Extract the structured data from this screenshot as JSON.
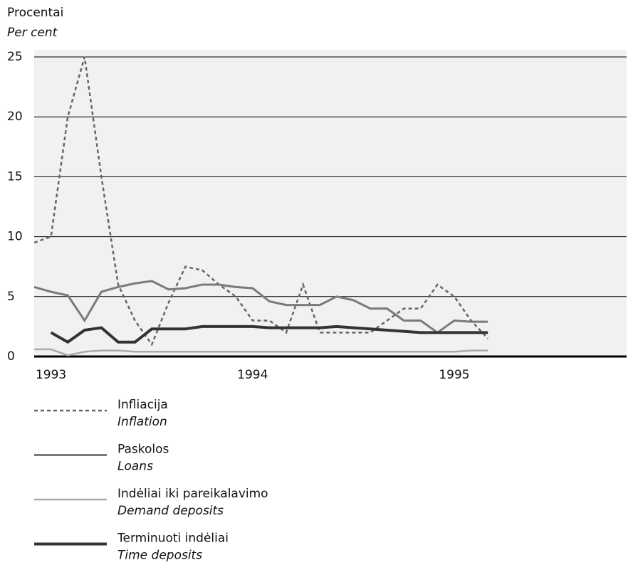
{
  "chart_data": {
    "type": "line",
    "y_label": "Procentai",
    "y_label_en": "Per cent",
    "categories": [
      null,
      "1993",
      null,
      null,
      null,
      null,
      null,
      null,
      null,
      null,
      null,
      null,
      null,
      "1994",
      null,
      null,
      null,
      null,
      null,
      null,
      null,
      null,
      null,
      null,
      null,
      "1995",
      null,
      null,
      null,
      null,
      null,
      null,
      null,
      null,
      null,
      null
    ],
    "ylim": [
      0,
      25
    ],
    "yticks": [
      0,
      5,
      10,
      15,
      20,
      25
    ],
    "grid": true,
    "series": [
      {
        "name": "Infliacija",
        "name_en": "Inflation",
        "color": "#666666",
        "dash": true,
        "values": [
          9.5,
          10,
          20,
          25,
          15,
          6,
          3,
          1,
          4.5,
          7.5,
          7.2,
          6,
          5,
          3,
          3,
          2,
          6,
          2,
          2,
          2,
          2,
          3,
          4,
          4,
          6,
          5,
          3,
          1.5,
          null,
          null,
          null,
          null,
          null,
          null,
          null,
          null
        ]
      },
      {
        "name": "Paskolos",
        "name_en": "Loans",
        "color": "#7a7a7a",
        "values": [
          5.8,
          5.4,
          5.1,
          3.0,
          5.4,
          5.8,
          6.1,
          6.3,
          5.6,
          5.7,
          6.0,
          6.0,
          5.8,
          5.7,
          4.6,
          4.3,
          4.3,
          4.3,
          5.0,
          4.7,
          4.0,
          4.0,
          3.0,
          3.0,
          2.0,
          3.0,
          2.9,
          2.9,
          null,
          null,
          null,
          null,
          null,
          null,
          null,
          null
        ]
      },
      {
        "name": "Indėliai iki pareikalavimo",
        "name_en": "Demand deposits",
        "color": "#aaaaaa",
        "values": [
          0.6,
          0.6,
          0.1,
          0.4,
          0.5,
          0.5,
          0.4,
          0.4,
          0.4,
          0.4,
          0.4,
          0.4,
          0.4,
          0.4,
          0.4,
          0.4,
          0.4,
          0.4,
          0.4,
          0.4,
          0.4,
          0.4,
          0.4,
          0.4,
          0.4,
          0.4,
          0.5,
          0.5,
          null,
          null,
          null,
          null,
          null,
          null,
          null,
          null
        ]
      },
      {
        "name": "Terminuoti indėliai",
        "name_en": "Time deposits",
        "color": "#333333",
        "values": [
          null,
          2.0,
          1.2,
          2.2,
          2.4,
          1.2,
          1.2,
          2.3,
          2.3,
          2.3,
          2.5,
          2.5,
          2.5,
          2.5,
          2.4,
          2.4,
          2.4,
          2.4,
          2.5,
          2.4,
          2.3,
          2.2,
          2.1,
          2.0,
          2.0,
          2.0,
          2.0,
          2.0,
          null,
          null,
          null,
          null,
          null,
          null,
          null,
          null
        ]
      }
    ]
  }
}
